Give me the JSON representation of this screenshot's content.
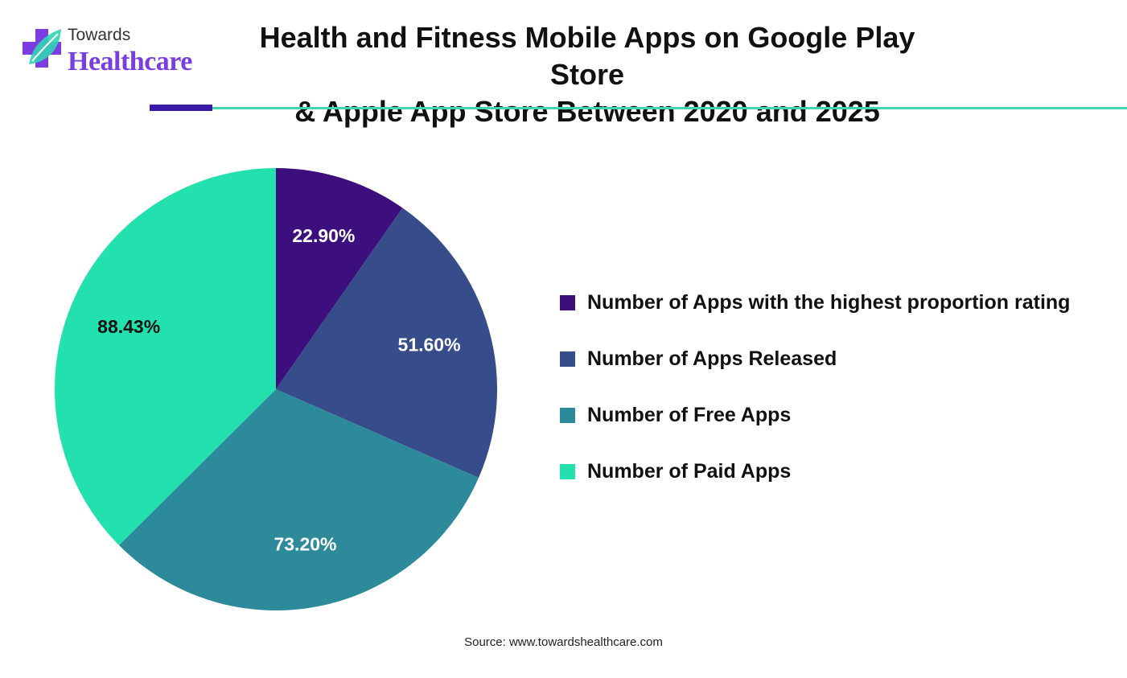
{
  "brand": {
    "line1": "Towards",
    "line2": "Healthcare"
  },
  "title": {
    "line1": "Health and Fitness Mobile Apps on Google Play Store",
    "line2": "& Apple App Store Between 2020 and 2025"
  },
  "colors": {
    "accent_rule": "#3a1aa8",
    "divider": "#3fd4b4",
    "brand_text": "#7a3ee0"
  },
  "chart_data": {
    "type": "pie",
    "title": "Health and Fitness Mobile Apps on Google Play Store & Apple App Store Between 2020 and 2025",
    "slices": [
      {
        "label": "Number of Apps with the highest proportion rating",
        "value": 22.9,
        "display": "22.90%",
        "color": "#3d0f7c",
        "label_color": "#ffffff"
      },
      {
        "label": "Number of Apps Released",
        "value": 51.6,
        "display": "51.60%",
        "color": "#364c8b",
        "label_color": "#ffffff"
      },
      {
        "label": "Number of Free Apps",
        "value": 73.2,
        "display": "73.20%",
        "color": "#2d8a9b",
        "label_color": "#ffffff"
      },
      {
        "label": "Number of Paid Apps",
        "value": 88.43,
        "display": "88.43%",
        "color": "#23e0af",
        "label_color": "#111111"
      }
    ],
    "legend_position": "right",
    "start_angle": "12 o'clock",
    "direction": "clockwise"
  },
  "source": "Source: www.towardshealthcare.com"
}
